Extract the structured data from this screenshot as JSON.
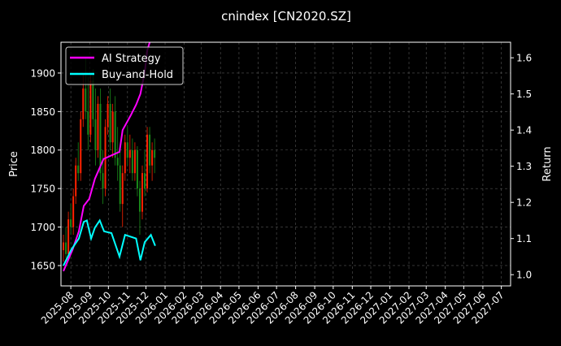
{
  "chart_data": {
    "type": "line",
    "title": "cnindex [CN2020.SZ]",
    "ylabel": "Price",
    "y2label": "Return",
    "xlim": [
      "2025-07-16",
      "2027-07-16"
    ],
    "ylim": [
      1623.6,
      1940
    ],
    "y2lim": [
      0.969,
      1.643
    ],
    "grid": true,
    "legend_position": "top-left",
    "x_ticks": [
      "2025-08",
      "2025-09",
      "2025-10",
      "2025-11",
      "2025-12",
      "2026-01",
      "2026-02",
      "2026-03",
      "2026-04",
      "2026-05",
      "2026-06",
      "2026-07",
      "2026-08",
      "2026-09",
      "2026-10",
      "2026-11",
      "2026-12",
      "2027-01",
      "2027-02",
      "2027-03",
      "2027-04",
      "2027-05",
      "2027-06",
      "2027-07"
    ],
    "y_ticks": [
      1650,
      1700,
      1750,
      1800,
      1850,
      1900
    ],
    "y2_ticks": [
      1.0,
      1.1,
      1.2,
      1.3,
      1.4,
      1.5,
      1.6
    ],
    "candles_columns": [
      "date",
      "open",
      "high",
      "low",
      "close"
    ],
    "candles": [
      [
        "2025-07-20",
        1670,
        1690,
        1655,
        1680
      ],
      [
        "2025-07-24",
        1680,
        1700,
        1660,
        1665
      ],
      [
        "2025-07-28",
        1665,
        1720,
        1660,
        1710
      ],
      [
        "2025-08-01",
        1710,
        1730,
        1690,
        1700
      ],
      [
        "2025-08-05",
        1700,
        1750,
        1690,
        1740
      ],
      [
        "2025-08-09",
        1740,
        1790,
        1730,
        1780
      ],
      [
        "2025-08-13",
        1780,
        1810,
        1760,
        1770
      ],
      [
        "2025-08-17",
        1770,
        1850,
        1760,
        1840
      ],
      [
        "2025-08-21",
        1840,
        1900,
        1830,
        1880
      ],
      [
        "2025-08-25",
        1880,
        1920,
        1840,
        1850
      ],
      [
        "2025-08-29",
        1850,
        1895,
        1800,
        1820
      ],
      [
        "2025-09-02",
        1820,
        1900,
        1810,
        1890
      ],
      [
        "2025-09-06",
        1890,
        1905,
        1830,
        1840
      ],
      [
        "2025-09-10",
        1840,
        1880,
        1780,
        1800
      ],
      [
        "2025-09-14",
        1800,
        1870,
        1790,
        1860
      ],
      [
        "2025-09-18",
        1860,
        1880,
        1760,
        1770
      ],
      [
        "2025-09-22",
        1770,
        1800,
        1730,
        1750
      ],
      [
        "2025-09-26",
        1750,
        1840,
        1740,
        1830
      ],
      [
        "2025-09-30",
        1830,
        1870,
        1820,
        1860
      ],
      [
        "2025-10-04",
        1860,
        1880,
        1800,
        1810
      ],
      [
        "2025-10-08",
        1810,
        1860,
        1790,
        1850
      ],
      [
        "2025-10-12",
        1850,
        1870,
        1780,
        1790
      ],
      [
        "2025-10-16",
        1790,
        1830,
        1760,
        1780
      ],
      [
        "2025-10-20",
        1780,
        1800,
        1720,
        1730
      ],
      [
        "2025-10-24",
        1730,
        1780,
        1700,
        1770
      ],
      [
        "2025-10-28",
        1770,
        1820,
        1760,
        1810
      ],
      [
        "2025-11-01",
        1810,
        1830,
        1780,
        1790
      ],
      [
        "2025-11-05",
        1790,
        1820,
        1770,
        1800
      ],
      [
        "2025-11-09",
        1800,
        1815,
        1760,
        1770
      ],
      [
        "2025-11-13",
        1770,
        1810,
        1760,
        1800
      ],
      [
        "2025-11-17",
        1800,
        1805,
        1740,
        1750
      ],
      [
        "2025-11-21",
        1750,
        1760,
        1690,
        1720
      ],
      [
        "2025-11-25",
        1720,
        1780,
        1710,
        1770
      ],
      [
        "2025-11-29",
        1770,
        1800,
        1740,
        1750
      ],
      [
        "2025-12-03",
        1750,
        1830,
        1745,
        1820
      ],
      [
        "2025-12-07",
        1820,
        1830,
        1770,
        1780
      ],
      [
        "2025-12-11",
        1780,
        1810,
        1760,
        1800
      ],
      [
        "2025-12-15",
        1800,
        1815,
        1770,
        1790
      ]
    ],
    "series": [
      {
        "name": "AI Strategy",
        "color": "#ff00ff",
        "axis": "right",
        "x": [
          "2025-07-20",
          "2025-08-04",
          "2025-08-14",
          "2025-08-22",
          "2025-08-31",
          "2025-09-09",
          "2025-09-23",
          "2025-10-06",
          "2025-10-19",
          "2025-10-24",
          "2025-11-06",
          "2025-11-15",
          "2025-11-22",
          "2025-11-29",
          "2025-12-03",
          "2025-12-17"
        ],
        "values": [
          1.01,
          1.07,
          1.12,
          1.19,
          1.21,
          1.265,
          1.32,
          1.33,
          1.34,
          1.4,
          1.44,
          1.47,
          1.5,
          1.56,
          1.62,
          1.7
        ]
      },
      {
        "name": "Buy-and-Hold",
        "color": "#00ffff",
        "axis": "right",
        "x": [
          "2025-07-20",
          "2025-08-02",
          "2025-08-14",
          "2025-08-22",
          "2025-08-27",
          "2025-09-03",
          "2025-09-09",
          "2025-09-17",
          "2025-09-24",
          "2025-10-06",
          "2025-10-19",
          "2025-10-28",
          "2025-11-15",
          "2025-11-22",
          "2025-11-29",
          "2025-12-09",
          "2025-12-16"
        ],
        "values": [
          1.025,
          1.07,
          1.1,
          1.146,
          1.15,
          1.1,
          1.13,
          1.15,
          1.12,
          1.115,
          1.05,
          1.11,
          1.1,
          1.04,
          1.09,
          1.11,
          1.08
        ]
      }
    ],
    "candle_colors": {
      "up": "#ff2200",
      "down": "#1a8a1a"
    }
  }
}
